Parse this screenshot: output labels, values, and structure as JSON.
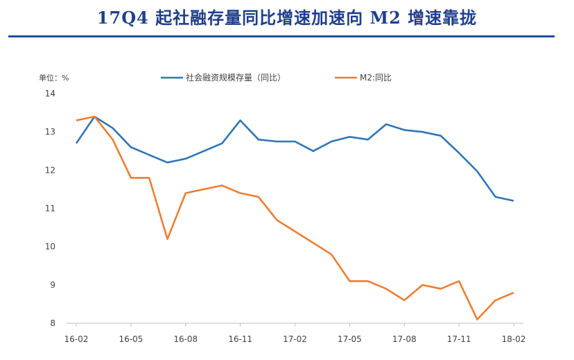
{
  "page": {
    "title": "17Q4 起社融存量同比增速加速向 M2 增速靠拢"
  },
  "chart_data": {
    "type": "line",
    "unit_label": "单位：%",
    "ylim": [
      8,
      14
    ],
    "yticks": [
      8,
      9,
      10,
      11,
      12,
      13,
      14
    ],
    "x": [
      "16-02",
      "16-03",
      "16-04",
      "16-05",
      "16-06",
      "16-07",
      "16-08",
      "16-09",
      "16-10",
      "16-11",
      "16-12",
      "17-01",
      "17-02",
      "17-03",
      "17-04",
      "17-05",
      "17-06",
      "17-07",
      "17-08",
      "17-09",
      "17-10",
      "17-11",
      "17-12",
      "18-01",
      "18-02"
    ],
    "xtick_labels": [
      "16-02",
      "16-05",
      "16-08",
      "16-11",
      "17-02",
      "17-05",
      "17-08",
      "17-11",
      "18-02"
    ],
    "xtick_indices": [
      0,
      3,
      6,
      9,
      12,
      15,
      18,
      21,
      24
    ],
    "grid": false,
    "legend_position": "top",
    "series": [
      {
        "name": "社会融资规模存量（同比）",
        "color": "#2e75b6",
        "values": [
          12.7,
          13.4,
          13.1,
          12.6,
          12.4,
          12.2,
          12.3,
          12.5,
          12.7,
          13.3,
          12.8,
          12.75,
          12.75,
          12.5,
          12.75,
          12.87,
          12.8,
          13.2,
          13.05,
          13.0,
          12.9,
          12.45,
          11.97,
          11.3,
          11.2
        ]
      },
      {
        "name": "M2:同比",
        "color": "#ed7d31",
        "values": [
          13.3,
          13.4,
          12.8,
          11.8,
          11.8,
          10.2,
          11.4,
          11.5,
          11.6,
          11.4,
          11.3,
          10.7,
          10.4,
          10.1,
          9.8,
          9.1,
          9.1,
          8.9,
          8.6,
          9.0,
          8.9,
          9.1,
          8.1,
          8.6,
          8.8
        ]
      }
    ]
  }
}
